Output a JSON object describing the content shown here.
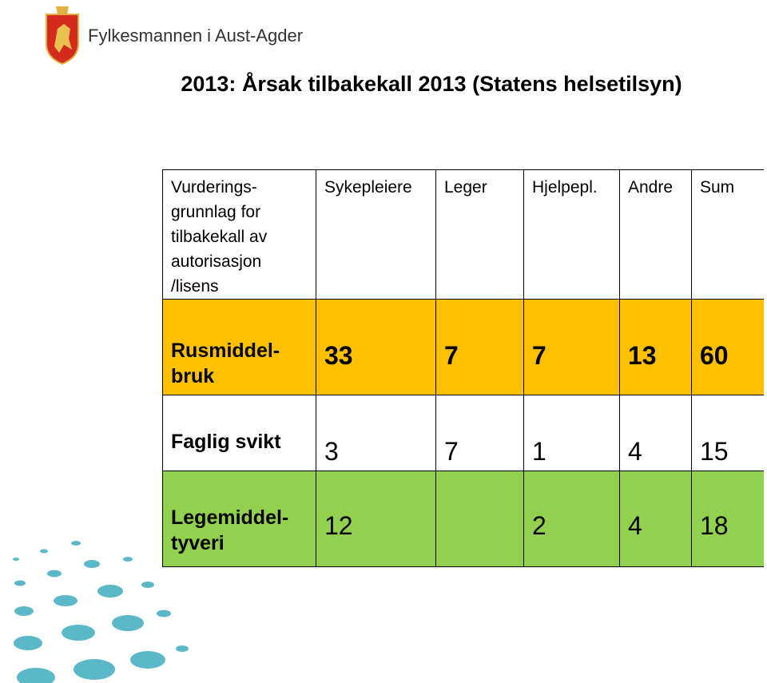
{
  "header": {
    "organization": "Fylkesmannen i Aust-Agder",
    "title": "2013: Årsak tilbakekall 2013 (Statens helsetilsyn)"
  },
  "table": {
    "columns": [
      "Vurderings-\ngrunnlag for\ntilbakekall av\nautorisasjon\n/lisens",
      "Sykepleiere",
      "Leger",
      "Hjelpepl.",
      "Andre",
      "Sum"
    ],
    "rows": [
      [
        "Rusmiddel-\nbruk",
        33,
        7,
        7,
        13,
        60
      ],
      [
        "Faglig svikt",
        3,
        7,
        1,
        4,
        15
      ],
      [
        "Legemiddel-\ntyveri",
        12,
        null,
        2,
        4,
        18
      ]
    ]
  }
}
